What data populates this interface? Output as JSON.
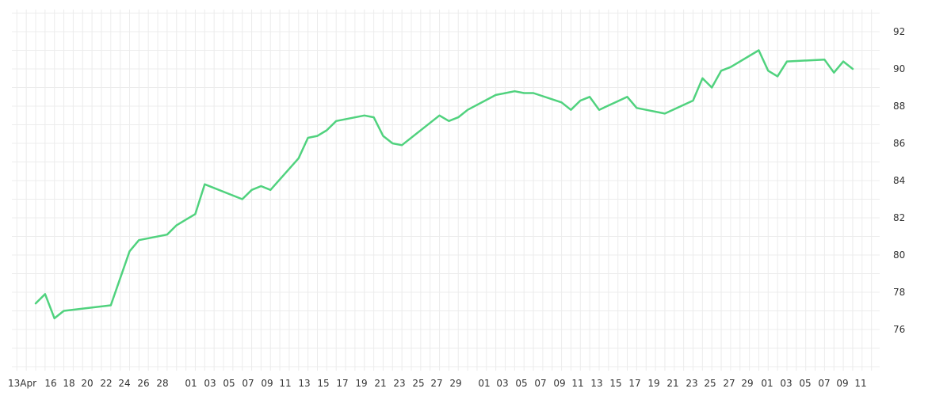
{
  "chart_data": {
    "type": "line",
    "title": "",
    "xlabel": "",
    "ylabel": "",
    "ylim": [
      74,
      93
    ],
    "grid": true,
    "y_axis_side": "right",
    "y_ticks": [
      76,
      78,
      80,
      82,
      84,
      86,
      88,
      90,
      92
    ],
    "x_tick_labels": [
      "13Apr",
      "16",
      "18",
      "20",
      "22",
      "24",
      "26",
      "28",
      "01",
      "03",
      "05",
      "07",
      "09",
      "11",
      "13",
      "15",
      "17",
      "19",
      "21",
      "23",
      "25",
      "27",
      "29",
      "01",
      "03",
      "05",
      "07",
      "09",
      "11",
      "13",
      "15",
      "17",
      "19",
      "21",
      "23",
      "25",
      "27",
      "29",
      "01",
      "03",
      "05",
      "07",
      "09",
      "11"
    ],
    "colors": {
      "line": "#50d27e",
      "grid": "#ececec",
      "text": "#333333"
    },
    "series": [
      {
        "points": [
          [
            0,
            77.4
          ],
          [
            1,
            77.9
          ],
          [
            2,
            76.6
          ],
          [
            3,
            77.0
          ],
          [
            8,
            77.3
          ],
          [
            10,
            80.2
          ],
          [
            11,
            80.8
          ],
          [
            14,
            81.1
          ],
          [
            15,
            81.6
          ],
          [
            16,
            81.9
          ],
          [
            17,
            82.2
          ],
          [
            18,
            83.8
          ],
          [
            22,
            83.0
          ],
          [
            23,
            83.5
          ],
          [
            24,
            83.7
          ],
          [
            25,
            83.5
          ],
          [
            28,
            85.2
          ],
          [
            29,
            86.3
          ],
          [
            30,
            86.4
          ],
          [
            31,
            86.7
          ],
          [
            32,
            87.2
          ],
          [
            35,
            87.5
          ],
          [
            36,
            87.4
          ],
          [
            37,
            86.4
          ],
          [
            38,
            86.0
          ],
          [
            39,
            85.9
          ],
          [
            43,
            87.5
          ],
          [
            44,
            87.2
          ],
          [
            45,
            87.4
          ],
          [
            46,
            87.8
          ],
          [
            49,
            88.6
          ],
          [
            51,
            88.8
          ],
          [
            52,
            88.7
          ],
          [
            53,
            88.7
          ],
          [
            56,
            88.2
          ],
          [
            57,
            87.8
          ],
          [
            58,
            88.3
          ],
          [
            59,
            88.5
          ],
          [
            60,
            87.8
          ],
          [
            63,
            88.5
          ],
          [
            64,
            87.9
          ],
          [
            65,
            87.8
          ],
          [
            67,
            87.6
          ],
          [
            70,
            88.3
          ],
          [
            71,
            89.5
          ],
          [
            72,
            89.0
          ],
          [
            73,
            89.9
          ],
          [
            74,
            90.1
          ],
          [
            77,
            91.0
          ],
          [
            78,
            89.9
          ],
          [
            79,
            89.6
          ],
          [
            80,
            90.4
          ],
          [
            84,
            90.5
          ],
          [
            85,
            89.8
          ],
          [
            86,
            90.4
          ],
          [
            87,
            90.0
          ]
        ]
      }
    ]
  }
}
